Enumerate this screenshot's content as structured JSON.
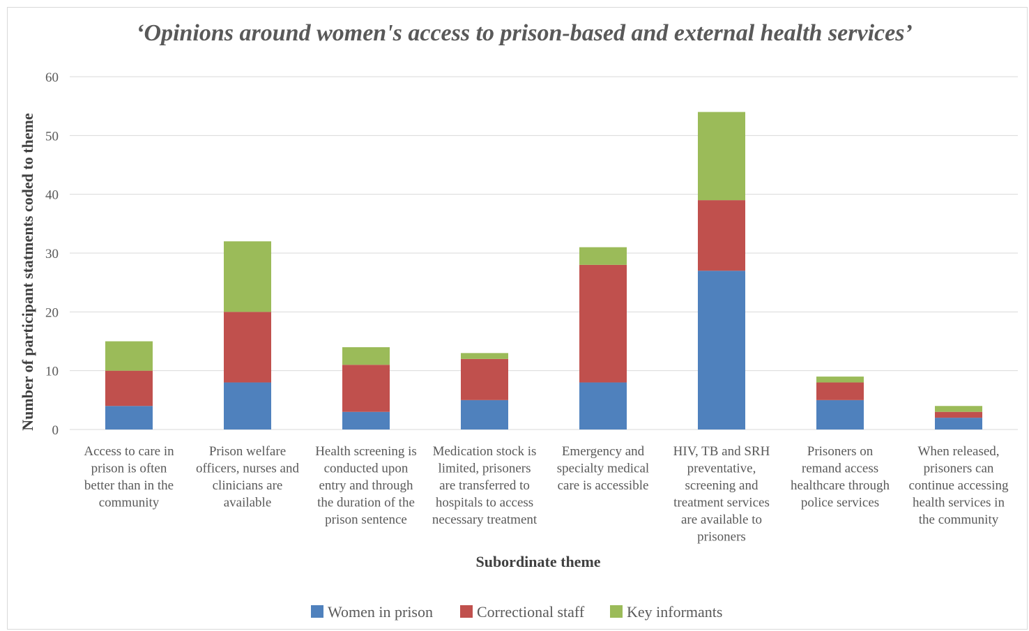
{
  "chart_data": {
    "type": "bar",
    "stacked": true,
    "title": "‘Opinions around women's access to prison-based and external health services’",
    "xlabel": "Subordinate theme",
    "ylabel": "Number of participant statments coded to theme",
    "ylim": [
      0,
      60
    ],
    "yticks": [
      "0",
      "10",
      "20",
      "30",
      "40",
      "50",
      "60"
    ],
    "grid": true,
    "legend": "bottom",
    "categories": [
      [
        "Access to care in",
        "prison is often",
        "better than in the",
        "community"
      ],
      [
        "Prison welfare",
        "officers, nurses and",
        "clinicians are",
        "available"
      ],
      [
        "Health screening is",
        "conducted upon",
        "entry and through",
        "the duration of the",
        "prison sentence"
      ],
      [
        "Medication stock is",
        "limited, prisoners",
        "are transferred to",
        "hospitals to access",
        "necessary treatment"
      ],
      [
        "Emergency and",
        "specialty medical",
        "care is accessible"
      ],
      [
        "HIV, TB and SRH",
        "preventative,",
        "screening and",
        "treatment services",
        "are available to",
        "prisoners"
      ],
      [
        "Prisoners on",
        "remand access",
        "healthcare through",
        "police services"
      ],
      [
        "When released,",
        "prisoners can",
        "continue accessing",
        "health services in",
        "the community"
      ]
    ],
    "series": [
      {
        "name": "Women in prison",
        "color": "#4f81bd",
        "values": [
          4,
          8,
          3,
          5,
          8,
          27,
          5,
          2
        ]
      },
      {
        "name": "Correctional staff",
        "color": "#c0504d",
        "values": [
          6,
          12,
          8,
          7,
          20,
          12,
          3,
          1
        ]
      },
      {
        "name": "Key informants",
        "color": "#9bbb59",
        "values": [
          5,
          12,
          3,
          1,
          3,
          15,
          1,
          1
        ]
      }
    ]
  }
}
